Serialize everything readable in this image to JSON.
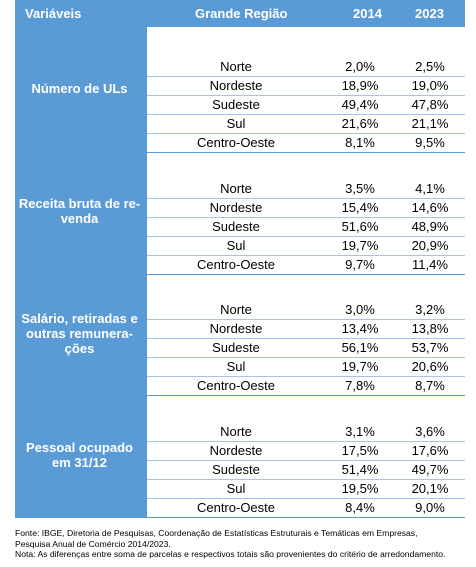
{
  "header": {
    "variaveis": "Variáveis",
    "grande_regiao": "Grande Região",
    "y2014": "2014",
    "y2023": "2023"
  },
  "blocks": [
    {
      "label": "Número de ULs",
      "rows": [
        {
          "region": "Norte",
          "v2014": "2,0%",
          "v2023": "2,5%"
        },
        {
          "region": "Nordeste",
          "v2014": "18,9%",
          "v2023": "19,0%"
        },
        {
          "region": "Sudeste",
          "v2014": "49,4%",
          "v2023": "47,8%"
        },
        {
          "region": "Sul",
          "v2014": "21,6%",
          "v2023": "21,1%"
        },
        {
          "region": "Centro-Oeste",
          "v2014": "8,1%",
          "v2023": "9,5%"
        }
      ]
    },
    {
      "label": "Receita bruta de re-\nvenda",
      "rows": [
        {
          "region": "Norte",
          "v2014": "3,5%",
          "v2023": "4,1%"
        },
        {
          "region": "Nordeste",
          "v2014": "15,4%",
          "v2023": "14,6%"
        },
        {
          "region": "Sudeste",
          "v2014": "51,6%",
          "v2023": "48,9%"
        },
        {
          "region": "Sul",
          "v2014": "19,7%",
          "v2023": "20,9%"
        },
        {
          "region": "Centro-Oeste",
          "v2014": "9,7%",
          "v2023": "11,4%"
        }
      ]
    },
    {
      "label": "Salário, retiradas e\noutras remunera-\nções",
      "rows": [
        {
          "region": "Norte",
          "v2014": "3,0%",
          "v2023": "3,2%"
        },
        {
          "region": "Nordeste",
          "v2014": "13,4%",
          "v2023": "13,8%"
        },
        {
          "region": "Sudeste",
          "v2014": "56,1%",
          "v2023": "53,7%"
        },
        {
          "region": "Sul",
          "v2014": "19,7%",
          "v2023": "20,6%"
        },
        {
          "region": "Centro-Oeste",
          "v2014": "7,8%",
          "v2023": "8,7%"
        }
      ]
    },
    {
      "label": "Pessoal ocupado\nem 31/12",
      "rows": [
        {
          "region": "Norte",
          "v2014": "3,1%",
          "v2023": "3,6%"
        },
        {
          "region": "Nordeste",
          "v2014": "17,5%",
          "v2023": "17,6%"
        },
        {
          "region": "Sudeste",
          "v2014": "51,4%",
          "v2023": "49,7%"
        },
        {
          "region": "Sul",
          "v2014": "19,5%",
          "v2023": "20,1%"
        },
        {
          "region": "Centro-Oeste",
          "v2014": "8,4%",
          "v2023": "9,0%"
        }
      ]
    }
  ],
  "notes": {
    "fonte_line1": "Fonte: IBGE, Diretoria de Pesquisas, Coordenação de Estatísticas Estruturais e Temáticas em Empresas,",
    "fonte_line2": "Pesquisa Anual de Comércio 2014/2023.",
    "nota": "Nota: As diferenças entre soma de parcelas e respectivos totais são provenientes do critério de arredondamento."
  },
  "colors": {
    "header_bg": "#5b9bd5",
    "header_text": "#ffffff",
    "row_rule": "#a6c4e6"
  }
}
